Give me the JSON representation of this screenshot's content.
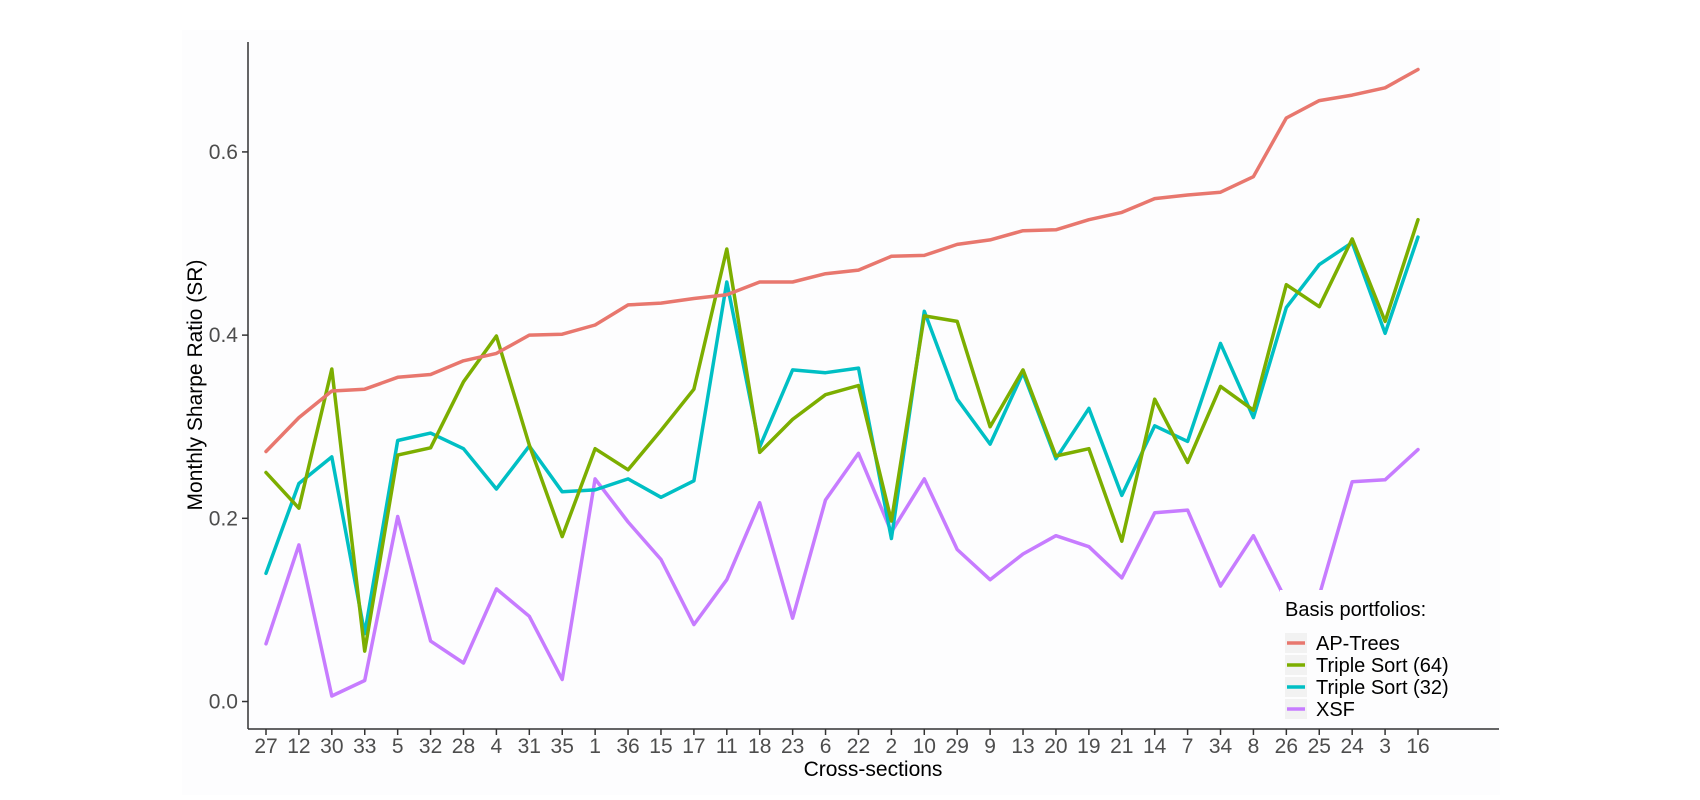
{
  "chart_data": {
    "type": "line",
    "xlabel": "Cross-sections",
    "ylabel": "Monthly Sharpe Ratio (SR)",
    "ylim": [
      -0.03,
      0.72
    ],
    "yticks": [
      0.0,
      0.2,
      0.4,
      0.6
    ],
    "ytick_labels": [
      "0.0",
      "0.2",
      "0.4",
      "0.6"
    ],
    "grid": false,
    "legend_position": "bottom-right",
    "legend_title": "Basis portfolios:",
    "categories": [
      "27",
      "12",
      "30",
      "33",
      "5",
      "32",
      "28",
      "4",
      "31",
      "35",
      "1",
      "36",
      "15",
      "17",
      "11",
      "18",
      "23",
      "6",
      "22",
      "2",
      "10",
      "29",
      "9",
      "13",
      "20",
      "19",
      "21",
      "14",
      "7",
      "34",
      "8",
      "26",
      "25",
      "24",
      "3",
      "16"
    ],
    "series": [
      {
        "name": "AP-Trees",
        "color": "#e8776e",
        "values": [
          0.273,
          0.31,
          0.339,
          0.341,
          0.354,
          0.357,
          0.372,
          0.38,
          0.4,
          0.401,
          0.411,
          0.433,
          0.435,
          0.44,
          0.444,
          0.458,
          0.458,
          0.467,
          0.471,
          0.486,
          0.487,
          0.499,
          0.504,
          0.514,
          0.515,
          0.526,
          0.534,
          0.549,
          0.553,
          0.556,
          0.573,
          0.637,
          0.656,
          0.662,
          0.67,
          0.69
        ]
      },
      {
        "name": "Triple Sort (64)",
        "color": "#7cae00",
        "values": [
          0.25,
          0.211,
          0.363,
          0.055,
          0.269,
          0.277,
          0.349,
          0.399,
          0.28,
          0.18,
          0.276,
          0.253,
          0.296,
          0.341,
          0.494,
          0.272,
          0.308,
          0.335,
          0.345,
          0.197,
          0.421,
          0.415,
          0.3,
          0.362,
          0.268,
          0.276,
          0.175,
          0.33,
          0.261,
          0.344,
          0.318,
          0.455,
          0.431,
          0.505,
          0.415,
          0.526
        ]
      },
      {
        "name": "Triple Sort (32)",
        "color": "#00bfc4",
        "values": [
          0.14,
          0.238,
          0.267,
          0.074,
          0.285,
          0.293,
          0.276,
          0.232,
          0.279,
          0.229,
          0.231,
          0.243,
          0.223,
          0.241,
          0.458,
          0.278,
          0.362,
          0.359,
          0.364,
          0.178,
          0.426,
          0.33,
          0.281,
          0.359,
          0.265,
          0.32,
          0.225,
          0.301,
          0.284,
          0.391,
          0.31,
          0.43,
          0.477,
          0.501,
          0.402,
          0.507
        ]
      },
      {
        "name": "XSF",
        "color": "#c77cff",
        "values": [
          0.063,
          0.171,
          0.006,
          0.023,
          0.202,
          0.066,
          0.042,
          0.123,
          0.093,
          0.024,
          0.243,
          0.196,
          0.155,
          0.084,
          0.133,
          0.217,
          0.091,
          0.22,
          0.271,
          0.185,
          0.243,
          0.166,
          0.133,
          0.161,
          0.181,
          0.169,
          0.135,
          0.206,
          0.209,
          0.126,
          0.181,
          0.11,
          0.116,
          0.24,
          0.242,
          0.275
        ]
      }
    ]
  }
}
